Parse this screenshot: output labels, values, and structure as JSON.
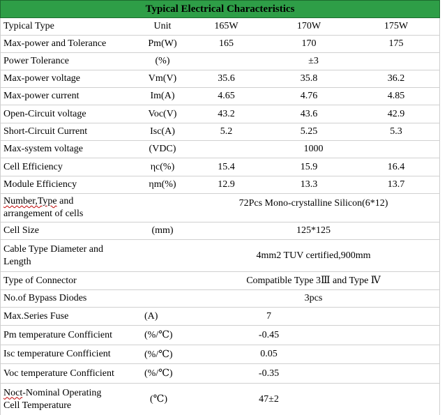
{
  "title": "Typical Electrical Characteristics",
  "header": {
    "label": "Typical Type",
    "unit": "Unit",
    "models": [
      "165W",
      "170W",
      "175W"
    ]
  },
  "rows": [
    {
      "label": "Max-power and Tolerance",
      "unit": "Pm(W)",
      "values": [
        "165",
        "170",
        "175"
      ]
    },
    {
      "label": "Power Tolerance",
      "unit": "(%)",
      "span": "±3"
    },
    {
      "label": "Max-power voltage",
      "unit": "Vm(V)",
      "values": [
        "35.6",
        "35.8",
        "36.2"
      ]
    },
    {
      "label": "Max-power current",
      "unit": "Im(A)",
      "values": [
        "4.65",
        "4.76",
        "4.85"
      ]
    },
    {
      "label": "Open-Circuit voltage",
      "unit": "Voc(V)",
      "values": [
        "43.2",
        "43.6",
        "42.9"
      ]
    },
    {
      "label": "Short-Circuit Current",
      "unit": "Isc(A)",
      "values": [
        "5.2",
        "5.25",
        "5.3"
      ]
    },
    {
      "label": "Max-system voltage",
      "unit": "(VDC)",
      "span": "1000"
    },
    {
      "label": "Cell Efficiency",
      "unit": "ηc(%)",
      "values": [
        "15.4",
        "15.9",
        "16.4"
      ]
    },
    {
      "label": "Module Efficiency",
      "unit": "ηm(%)",
      "values": [
        "12.9",
        "13.3",
        "13.7"
      ]
    },
    {
      "label_part1": "Number,Type",
      "label_part2": " and",
      "label_line2": "arrangement of cells",
      "unit": "",
      "span": "72Pcs Mono-crystalline Silicon(6*12)"
    },
    {
      "label": "Cell Size",
      "unit": "(mm)",
      "span": "125*125"
    },
    {
      "label_line1": "Cable Type Diameter and",
      "label_line2": "Length",
      "unit": "",
      "span": "4mm2 TUV certified,900mm"
    },
    {
      "label": "Type of Connector",
      "unit": "",
      "span": "Compatible Type 3Ⅲ and Type Ⅳ"
    },
    {
      "label": "No.of Bypass Diodes",
      "unit": "",
      "span": "3pcs"
    },
    {
      "label": "Max.Series Fuse",
      "unit": "(A)",
      "span": "7"
    },
    {
      "label": "Pm temperature Confficient",
      "unit": "(%/℃)",
      "span": "-0.45"
    },
    {
      "label": "Isc temperature Confficient",
      "unit": "(%/℃)",
      "span": "0.05"
    },
    {
      "label": "Voc temperature Confficient",
      "unit": "(%/℃)",
      "span": "-0.35"
    },
    {
      "label_part1": "Noct",
      "label_part2": "-Nominal Operating",
      "label_line2": "Cell Temperature",
      "unit": "(℃)",
      "span": "47±2"
    }
  ]
}
